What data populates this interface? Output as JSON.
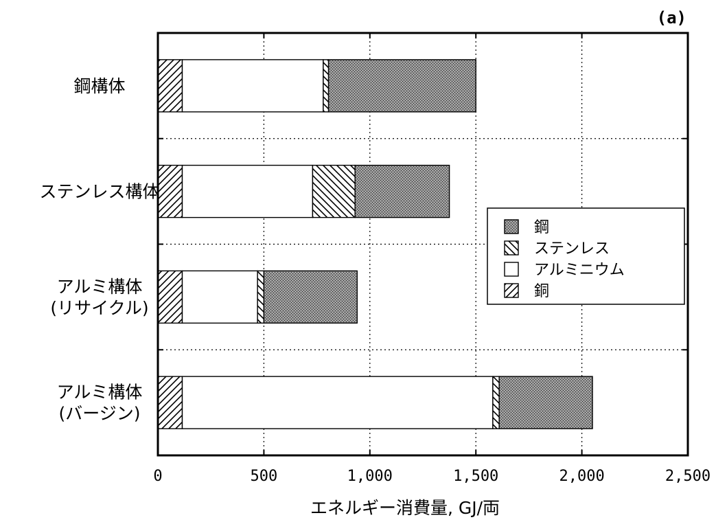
{
  "chart_data": {
    "type": "bar",
    "orientation": "horizontal",
    "stacked": true,
    "panel_label": "(a)",
    "xlabel": "エネルギー消費量, GJ/両",
    "xlim": [
      0,
      2500
    ],
    "x_ticks": [
      0,
      500,
      1000,
      1500,
      2000,
      2500
    ],
    "x_tick_labels": [
      "0",
      "500",
      "1,000",
      "1,500",
      "2,000",
      "2,500"
    ],
    "grid": "dotted",
    "legend_position": "right",
    "categories": [
      [
        "鋼構体"
      ],
      [
        "ステンレス構体"
      ],
      [
        "アルミ構体",
        "(リサイクル)"
      ],
      [
        "アルミ構体",
        "(バージン)"
      ]
    ],
    "series": [
      {
        "name": "銅",
        "pattern": "hatch-forward",
        "values": [
          115,
          115,
          115,
          115
        ]
      },
      {
        "name": "アルミニウム",
        "pattern": "white",
        "values": [
          665,
          615,
          355,
          1465
        ]
      },
      {
        "name": "ステンレス",
        "pattern": "hatch-back",
        "values": [
          25,
          200,
          30,
          30
        ]
      },
      {
        "name": "鋼",
        "pattern": "dense-gray",
        "values": [
          695,
          445,
          440,
          440
        ]
      }
    ],
    "legend_order": [
      "鋼",
      "ステンレス",
      "アルミニウム",
      "銅"
    ]
  }
}
